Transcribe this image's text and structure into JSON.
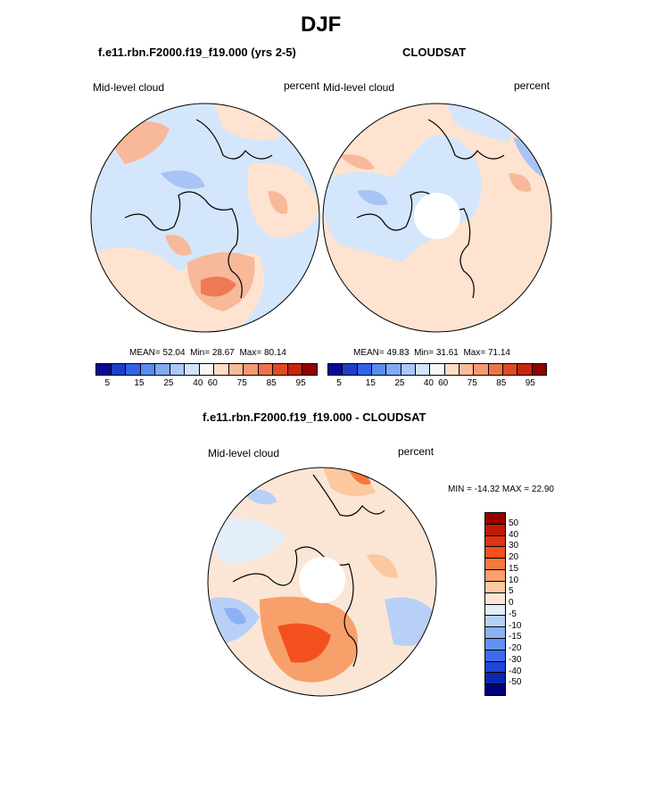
{
  "season_title": "DJF",
  "panels": {
    "model": {
      "title": "f.e11.rbn.F2000.f19_f19.000 (yrs 2-5)",
      "variable": "Mid-level cloud",
      "units": "percent",
      "mean_label": "MEAN=",
      "mean": "52.04",
      "min_label": "Min=",
      "min": "28.67",
      "max_label": "Max=",
      "max": "80.14"
    },
    "obs": {
      "title": "CLOUDSAT",
      "variable": "Mid-level cloud",
      "units": "percent",
      "mean_label": "MEAN=",
      "mean": "49.83",
      "min_label": "Min=",
      "min": "31.61",
      "max_label": "Max=",
      "max": "71.14"
    },
    "diff": {
      "title": "f.e11.rbn.F2000.f19_f19.000 - CLOUDSAT",
      "variable": "Mid-level cloud",
      "units": "percent",
      "minmax_text": "MIN = -14.32 MAX =  22.90"
    }
  },
  "abs_colorbar": {
    "ticks": [
      "5",
      "15",
      "25",
      "40",
      "60",
      "75",
      "85",
      "95"
    ],
    "colors": [
      "#0a0a96",
      "#1e3ec8",
      "#3264e6",
      "#5a8cf0",
      "#82aaf5",
      "#aac8fa",
      "#d2e4fc",
      "#f8f8f8",
      "#fcdcc4",
      "#f8bc9a",
      "#f49a72",
      "#ec744c",
      "#de4a26",
      "#c4260e",
      "#920000"
    ]
  },
  "diff_colorbar": {
    "ticks": [
      "50",
      "40",
      "30",
      "20",
      "15",
      "10",
      "5",
      "0",
      "-5",
      "-10",
      "-15",
      "-20",
      "-30",
      "-40",
      "-50"
    ],
    "colors": [
      "#960000",
      "#bc1c08",
      "#dc3414",
      "#f4501e",
      "#f8783c",
      "#f8a06a",
      "#fbc8a0",
      "#fbe6d6",
      "#e4eef8",
      "#b8d0f8",
      "#8cb0f4",
      "#6490f0",
      "#3c6cec",
      "#1e46d2",
      "#0a28b0",
      "#00007a"
    ]
  },
  "map_colors": {
    "land_outline": "#000000",
    "base_blue": "#d4e6fb",
    "light_orange": "#fde3d0",
    "orange": "#f8b89a",
    "dark_orange": "#ee7a54",
    "red": "#d8401e",
    "blue": "#a8c4f4",
    "dark_blue": "#7aa0ec",
    "pole_hole": "#ffffff"
  }
}
